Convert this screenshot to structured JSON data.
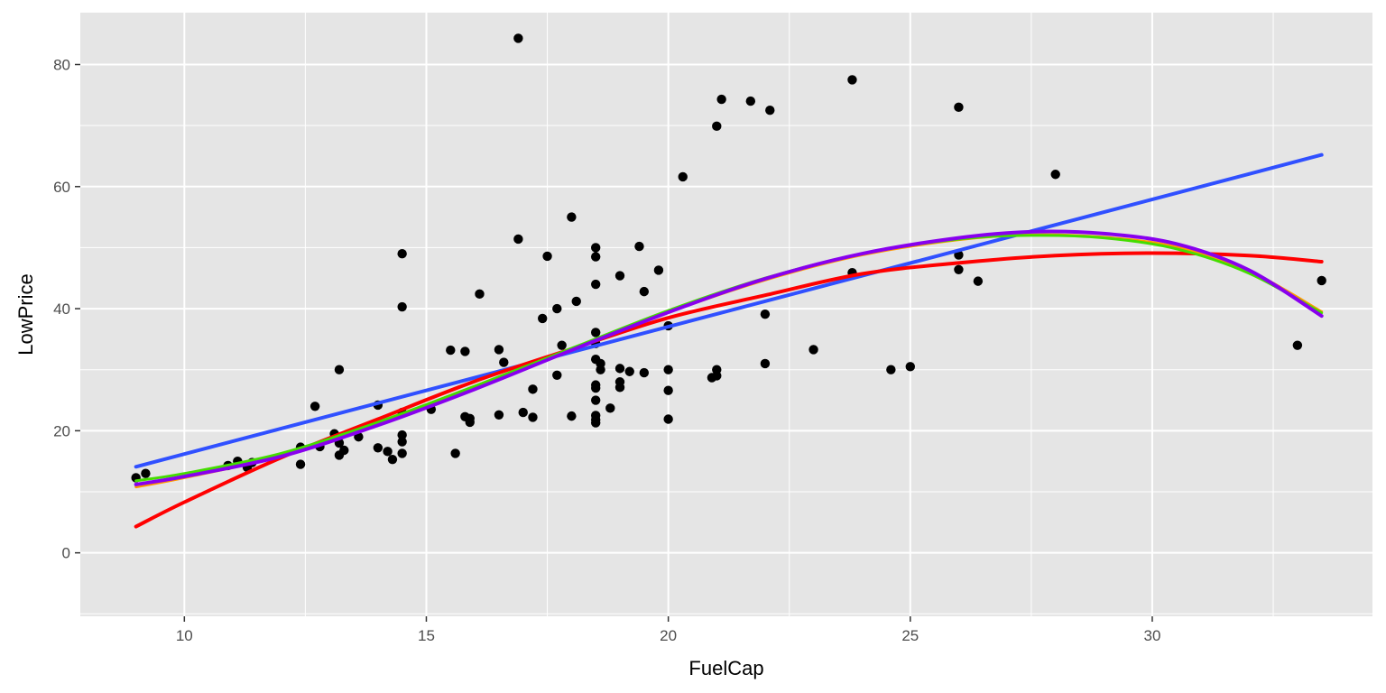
{
  "chart_data": {
    "type": "scatter",
    "title": "",
    "xlabel": "FuelCap",
    "ylabel": "LowPrice",
    "xlim": [
      7.85,
      34.55
    ],
    "ylim": [
      -10.4,
      88.5
    ],
    "x_ticks": [
      10,
      15,
      20,
      25,
      30
    ],
    "y_ticks": [
      0,
      20,
      40,
      60,
      80
    ],
    "x_tick_labels": [
      "10",
      "15",
      "20",
      "25",
      "30"
    ],
    "y_tick_labels": [
      "0",
      "20",
      "40",
      "60",
      "80"
    ],
    "grid": true,
    "legend": "none",
    "colors": {
      "panel": "#e5e5e5",
      "grid": "#ffffff",
      "points": "#000000",
      "linear": "#3050ff",
      "log": "#ff0000",
      "poly_orange": "#ff9900",
      "poly_green": "#44dd00",
      "poly_purple": "#8800ee"
    },
    "points": [
      [
        9.0,
        12.3
      ],
      [
        9.2,
        13.0
      ],
      [
        10.9,
        14.3
      ],
      [
        11.1,
        15.0
      ],
      [
        11.3,
        14.0
      ],
      [
        11.4,
        14.8
      ],
      [
        12.4,
        14.5
      ],
      [
        12.4,
        17.3
      ],
      [
        12.7,
        24.0
      ],
      [
        12.8,
        17.4
      ],
      [
        13.1,
        19.5
      ],
      [
        13.2,
        18.0
      ],
      [
        13.2,
        16.0
      ],
      [
        13.2,
        30.0
      ],
      [
        13.3,
        16.8
      ],
      [
        13.6,
        19.0
      ],
      [
        14.0,
        24.2
      ],
      [
        14.0,
        17.2
      ],
      [
        14.2,
        16.6
      ],
      [
        14.3,
        15.3
      ],
      [
        14.5,
        49.0
      ],
      [
        14.5,
        40.3
      ],
      [
        14.5,
        23.0
      ],
      [
        14.5,
        19.3
      ],
      [
        14.5,
        18.2
      ],
      [
        14.5,
        16.3
      ],
      [
        15.1,
        23.5
      ],
      [
        15.5,
        33.2
      ],
      [
        15.6,
        16.3
      ],
      [
        15.8,
        33.0
      ],
      [
        15.8,
        22.3
      ],
      [
        15.9,
        22.0
      ],
      [
        15.9,
        21.4
      ],
      [
        16.1,
        42.4
      ],
      [
        16.5,
        33.3
      ],
      [
        16.5,
        22.6
      ],
      [
        16.6,
        31.2
      ],
      [
        16.9,
        84.3
      ],
      [
        16.9,
        51.4
      ],
      [
        17.0,
        23.0
      ],
      [
        17.2,
        26.8
      ],
      [
        17.2,
        22.2
      ],
      [
        17.4,
        38.4
      ],
      [
        17.5,
        48.6
      ],
      [
        17.7,
        40.0
      ],
      [
        17.7,
        29.1
      ],
      [
        17.8,
        34.0
      ],
      [
        18.0,
        55.0
      ],
      [
        18.0,
        22.4
      ],
      [
        18.1,
        41.2
      ],
      [
        18.5,
        50.0
      ],
      [
        18.5,
        48.5
      ],
      [
        18.5,
        44.0
      ],
      [
        18.5,
        36.1
      ],
      [
        18.5,
        34.3
      ],
      [
        18.5,
        31.7
      ],
      [
        18.5,
        27.5
      ],
      [
        18.5,
        27.0
      ],
      [
        18.5,
        25.0
      ],
      [
        18.5,
        22.5
      ],
      [
        18.5,
        21.8
      ],
      [
        18.5,
        21.3
      ],
      [
        18.6,
        31.0
      ],
      [
        18.6,
        30.0
      ],
      [
        18.8,
        23.7
      ],
      [
        19.0,
        45.4
      ],
      [
        19.0,
        30.2
      ],
      [
        19.0,
        28.0
      ],
      [
        19.0,
        27.1
      ],
      [
        19.2,
        29.7
      ],
      [
        19.4,
        50.2
      ],
      [
        19.5,
        42.8
      ],
      [
        19.5,
        29.5
      ],
      [
        19.8,
        46.3
      ],
      [
        20.0,
        37.2
      ],
      [
        20.0,
        30.0
      ],
      [
        20.0,
        26.6
      ],
      [
        20.0,
        21.9
      ],
      [
        20.3,
        61.6
      ],
      [
        20.9,
        28.7
      ],
      [
        21.0,
        69.9
      ],
      [
        21.0,
        30.0
      ],
      [
        21.0,
        29.0
      ],
      [
        21.1,
        74.3
      ],
      [
        21.7,
        74.0
      ],
      [
        22.0,
        39.1
      ],
      [
        22.0,
        31.0
      ],
      [
        22.1,
        72.5
      ],
      [
        23.0,
        33.3
      ],
      [
        23.8,
        77.5
      ],
      [
        23.8,
        45.9
      ],
      [
        24.6,
        30.0
      ],
      [
        25.0,
        30.5
      ],
      [
        26.0,
        73.0
      ],
      [
        26.0,
        48.8
      ],
      [
        26.0,
        46.4
      ],
      [
        26.4,
        44.5
      ],
      [
        28.0,
        62.0
      ],
      [
        33.0,
        34.0
      ],
      [
        33.5,
        44.6
      ]
    ],
    "series": [
      {
        "values": [
          [
            9.0,
            14.1
          ],
          [
            33.5,
            65.2
          ]
        ]
      },
      {
        "values": [
          [
            9.0,
            4.3
          ],
          [
            10,
            8.3
          ],
          [
            12,
            15.6
          ],
          [
            14,
            21.9
          ],
          [
            16,
            28.1
          ],
          [
            18,
            33.4
          ],
          [
            20,
            38.5
          ],
          [
            22,
            42.2
          ],
          [
            24,
            45.7
          ],
          [
            26,
            47.5
          ],
          [
            28,
            48.7
          ],
          [
            30,
            49.1
          ],
          [
            32,
            48.7
          ],
          [
            33.5,
            47.7
          ]
        ]
      },
      {
        "values": [
          [
            9.0,
            10.8
          ],
          [
            10,
            12.3
          ],
          [
            12,
            15.9
          ],
          [
            14,
            21.3
          ],
          [
            16,
            27.3
          ],
          [
            18,
            33.3
          ],
          [
            20,
            39.4
          ],
          [
            22,
            44.7
          ],
          [
            24,
            48.8
          ],
          [
            26,
            51.3
          ],
          [
            27.5,
            52.1
          ],
          [
            29,
            51.7
          ],
          [
            30.5,
            50.1
          ],
          [
            32,
            46.2
          ],
          [
            33.5,
            39.5
          ]
        ]
      },
      {
        "values": [
          [
            9.0,
            11.8
          ],
          [
            10,
            13.0
          ],
          [
            12,
            16.3
          ],
          [
            14,
            21.4
          ],
          [
            16,
            27.3
          ],
          [
            18,
            33.5
          ],
          [
            20,
            39.7
          ],
          [
            22,
            45.0
          ],
          [
            24,
            49.0
          ],
          [
            26,
            51.4
          ],
          [
            27.5,
            52.0
          ],
          [
            29,
            51.6
          ],
          [
            30.5,
            49.8
          ],
          [
            32,
            45.8
          ],
          [
            33.5,
            39.3
          ]
        ]
      },
      {
        "values": [
          [
            9.0,
            11.2
          ],
          [
            10,
            12.5
          ],
          [
            12,
            15.8
          ],
          [
            14,
            20.9
          ],
          [
            16,
            26.8
          ],
          [
            18,
            33.2
          ],
          [
            20,
            39.4
          ],
          [
            22,
            44.9
          ],
          [
            24,
            49.0
          ],
          [
            26,
            51.6
          ],
          [
            27.5,
            52.6
          ],
          [
            29,
            52.3
          ],
          [
            30.5,
            50.6
          ],
          [
            32,
            46.3
          ],
          [
            33.5,
            38.8
          ]
        ]
      }
    ]
  }
}
